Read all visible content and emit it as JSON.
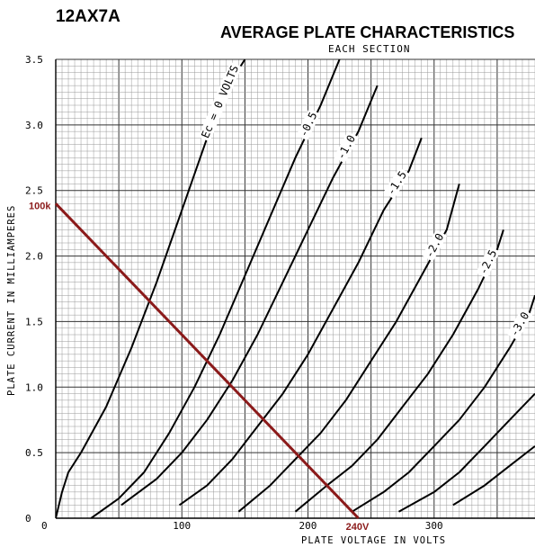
{
  "chart_data": {
    "type": "line",
    "tube": "12AX7A",
    "title": "AVERAGE PLATE CHARACTERISTICS",
    "subtitle": "EACH SECTION",
    "xlabel": "PLATE VOLTAGE IN VOLTS",
    "ylabel": "PLATE CURRENT IN MILLIAMPERES",
    "xlim": [
      0,
      380
    ],
    "ylim": [
      0,
      3.5
    ],
    "x_ticks": [
      "0",
      "100",
      "200",
      "300"
    ],
    "y_ticks": [
      "0",
      "0.5",
      "1.0",
      "1.5",
      "2.0",
      "2.5",
      "3.0",
      "3.5"
    ],
    "grid": true,
    "series": [
      {
        "label": "Ec = 0 VOLTS",
        "x": [
          0,
          5,
          10,
          20,
          40,
          60,
          80,
          100,
          120,
          140,
          150
        ],
        "y": [
          0,
          0.2,
          0.35,
          0.5,
          0.85,
          1.3,
          1.8,
          2.35,
          2.9,
          3.35,
          3.5
        ]
      },
      {
        "label": "-0.5",
        "x": [
          28,
          50,
          70,
          90,
          110,
          130,
          150,
          170,
          190,
          210,
          225
        ],
        "y": [
          0,
          0.15,
          0.35,
          0.65,
          1.0,
          1.4,
          1.85,
          2.3,
          2.75,
          3.15,
          3.5
        ]
      },
      {
        "label": "-1.0",
        "x": [
          52,
          80,
          100,
          120,
          140,
          160,
          180,
          200,
          220,
          240,
          255
        ],
        "y": [
          0.1,
          0.3,
          0.5,
          0.75,
          1.05,
          1.4,
          1.8,
          2.2,
          2.6,
          2.95,
          3.3
        ]
      },
      {
        "label": "-1.5",
        "x": [
          98,
          120,
          140,
          160,
          180,
          200,
          220,
          240,
          260,
          280,
          290
        ],
        "y": [
          0.1,
          0.25,
          0.45,
          0.7,
          0.95,
          1.25,
          1.6,
          1.95,
          2.35,
          2.65,
          2.9
        ]
      },
      {
        "label": "-2.0",
        "x": [
          145,
          170,
          190,
          210,
          230,
          250,
          270,
          290,
          310,
          320
        ],
        "y": [
          0.05,
          0.25,
          0.45,
          0.65,
          0.9,
          1.2,
          1.5,
          1.85,
          2.2,
          2.55
        ]
      },
      {
        "label": "-2.5",
        "x": [
          190,
          215,
          235,
          255,
          275,
          295,
          315,
          335,
          350,
          355
        ],
        "y": [
          0.05,
          0.25,
          0.4,
          0.6,
          0.85,
          1.1,
          1.4,
          1.75,
          2.05,
          2.2
        ]
      },
      {
        "label": "-3.0",
        "x": [
          235,
          260,
          280,
          300,
          320,
          340,
          360,
          375,
          380
        ],
        "y": [
          0.05,
          0.2,
          0.35,
          0.55,
          0.75,
          1.0,
          1.3,
          1.55,
          1.7
        ]
      },
      {
        "label": "",
        "x": [
          272,
          300,
          320,
          340,
          360,
          380
        ],
        "y": [
          0.05,
          0.2,
          0.35,
          0.55,
          0.75,
          0.95
        ]
      },
      {
        "label": "",
        "x": [
          315,
          340,
          360,
          380
        ],
        "y": [
          0.1,
          0.25,
          0.4,
          0.55
        ]
      }
    ],
    "load_line": {
      "color": "#8b1a1a",
      "start_label": "100k",
      "end_label": "240V",
      "x": [
        0,
        240
      ],
      "y": [
        2.4,
        0
      ]
    }
  }
}
